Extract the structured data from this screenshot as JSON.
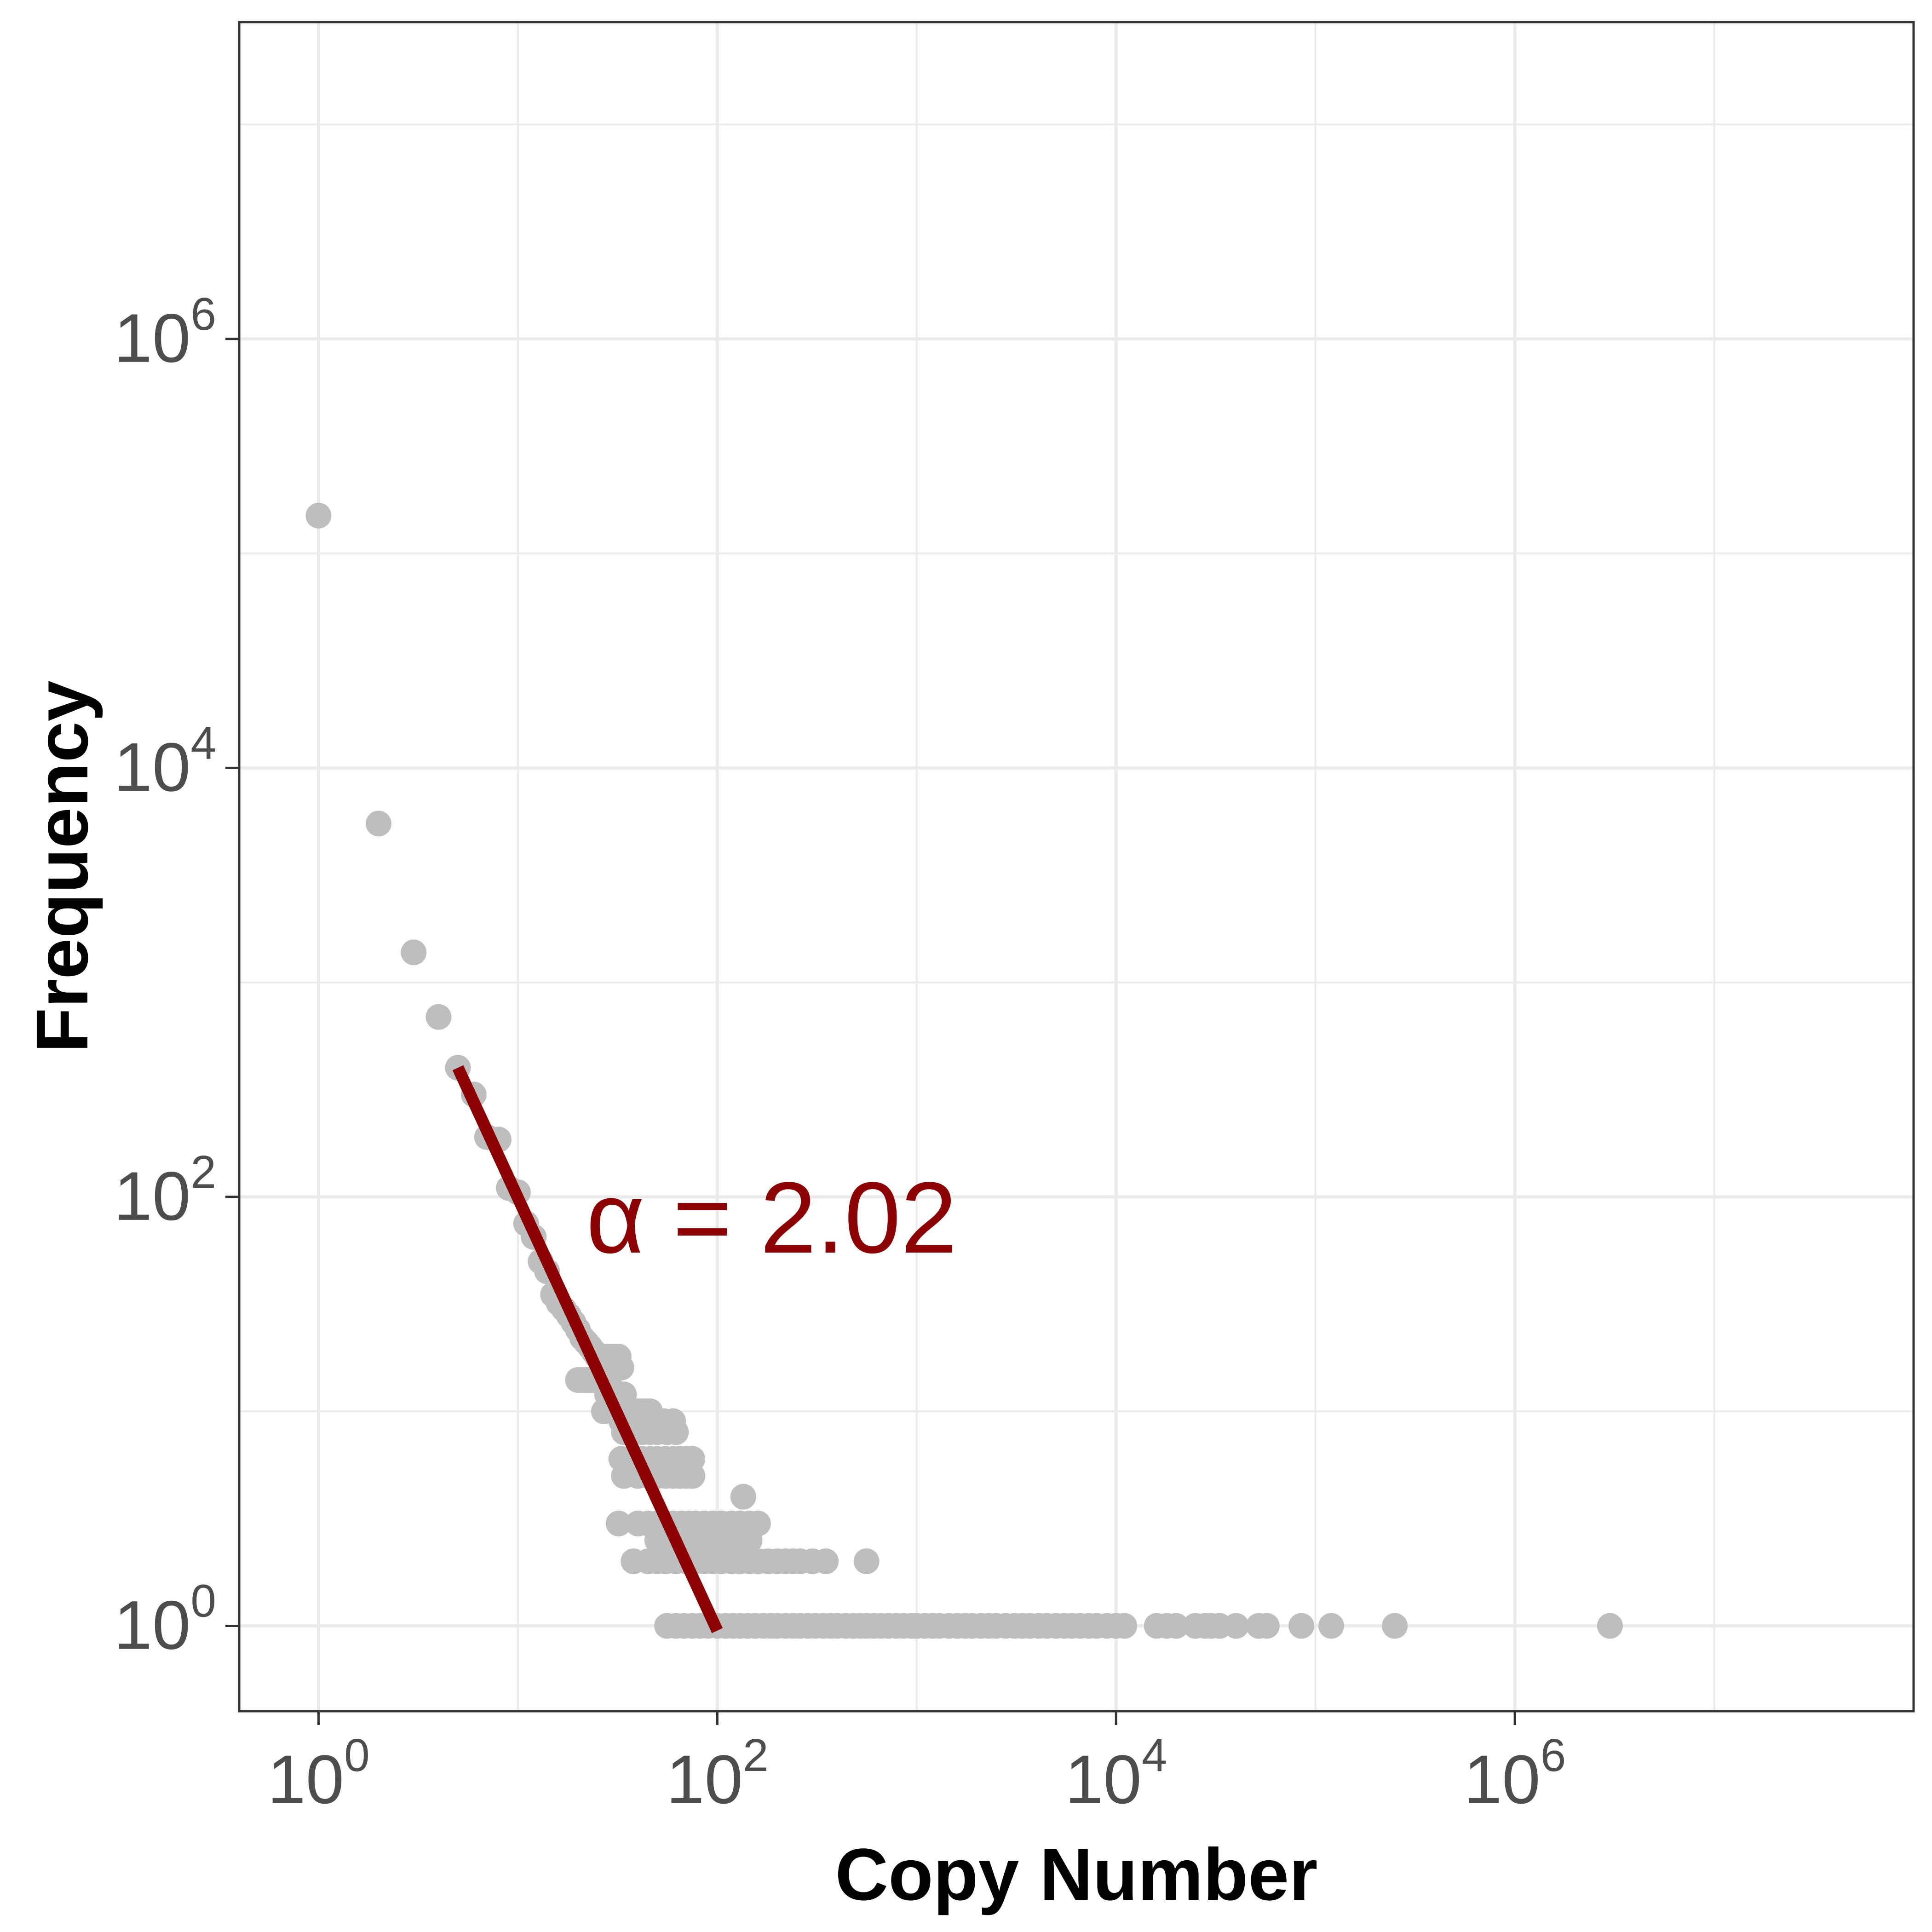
{
  "chart_data": {
    "type": "scatter",
    "xlabel": "Copy Number",
    "ylabel": "Frequency",
    "x_scale": "log10",
    "y_scale": "log10",
    "xlim": [
      0.4,
      100000000
    ],
    "ylim": [
      0.4,
      30000000
    ],
    "x_ticks": [
      {
        "value": 1,
        "base": "10",
        "exp": "0"
      },
      {
        "value": 100,
        "base": "10",
        "exp": "2"
      },
      {
        "value": 10000,
        "base": "10",
        "exp": "4"
      },
      {
        "value": 1000000,
        "base": "10",
        "exp": "6"
      }
    ],
    "y_ticks": [
      {
        "value": 1,
        "base": "10",
        "exp": "0"
      },
      {
        "value": 100,
        "base": "10",
        "exp": "2"
      },
      {
        "value": 10000,
        "base": "10",
        "exp": "4"
      },
      {
        "value": 1000000,
        "base": "10",
        "exp": "6"
      }
    ],
    "grid": true,
    "point_color": "#bebebe",
    "points": [
      [
        1,
        150000
      ],
      [
        2,
        5500
      ],
      [
        3,
        1380
      ],
      [
        4,
        690
      ],
      [
        5,
        400
      ],
      [
        6,
        300
      ],
      [
        7,
        190
      ],
      [
        8,
        185
      ],
      [
        9,
        110
      ],
      [
        10,
        105
      ],
      [
        11,
        75
      ],
      [
        12,
        65
      ],
      [
        13,
        50
      ],
      [
        14,
        45
      ],
      [
        15,
        35
      ],
      [
        16,
        32
      ],
      [
        17,
        30
      ],
      [
        18,
        28
      ],
      [
        19,
        26
      ],
      [
        20,
        24
      ],
      [
        21,
        22
      ],
      [
        22,
        21
      ],
      [
        23,
        20
      ],
      [
        24,
        19
      ],
      [
        25,
        18
      ],
      [
        26,
        17
      ],
      [
        27,
        15
      ],
      [
        28,
        14
      ],
      [
        29,
        13
      ],
      [
        20,
        14
      ],
      [
        21,
        14
      ],
      [
        22,
        14
      ],
      [
        23,
        14
      ],
      [
        24,
        14
      ],
      [
        25,
        14
      ],
      [
        26,
        14
      ],
      [
        27,
        18
      ],
      [
        28,
        18
      ],
      [
        29,
        18
      ],
      [
        30,
        18
      ],
      [
        31,
        18
      ],
      [
        32,
        18
      ],
      [
        33,
        16
      ],
      [
        28,
        12
      ],
      [
        29,
        12
      ],
      [
        30,
        12
      ],
      [
        31,
        12
      ],
      [
        32,
        12
      ],
      [
        33,
        12
      ],
      [
        34,
        12
      ],
      [
        27,
        10
      ],
      [
        30,
        10
      ],
      [
        33,
        10
      ],
      [
        36,
        10
      ],
      [
        38,
        10
      ],
      [
        40,
        10
      ],
      [
        42,
        10
      ],
      [
        44,
        10
      ],
      [
        46,
        10
      ],
      [
        33,
        9
      ],
      [
        36,
        9
      ],
      [
        40,
        9
      ],
      [
        44,
        9
      ],
      [
        48,
        9
      ],
      [
        54,
        9
      ],
      [
        60,
        9
      ],
      [
        34,
        8
      ],
      [
        38,
        8
      ],
      [
        42,
        8
      ],
      [
        46,
        8
      ],
      [
        50,
        8
      ],
      [
        56,
        8
      ],
      [
        62,
        8
      ],
      [
        33,
        6
      ],
      [
        38,
        6
      ],
      [
        42,
        6
      ],
      [
        46,
        6
      ],
      [
        50,
        6
      ],
      [
        55,
        6
      ],
      [
        60,
        6
      ],
      [
        65,
        6
      ],
      [
        70,
        6
      ],
      [
        75,
        6
      ],
      [
        34,
        5
      ],
      [
        40,
        5
      ],
      [
        45,
        5
      ],
      [
        50,
        5
      ],
      [
        55,
        5
      ],
      [
        60,
        5
      ],
      [
        65,
        5
      ],
      [
        70,
        5
      ],
      [
        75,
        5
      ],
      [
        32,
        3
      ],
      [
        40,
        3
      ],
      [
        45,
        3
      ],
      [
        50,
        3
      ],
      [
        55,
        3
      ],
      [
        60,
        3
      ],
      [
        66,
        3
      ],
      [
        72,
        3
      ],
      [
        78,
        3
      ],
      [
        86,
        3
      ],
      [
        95,
        3
      ],
      [
        105,
        3
      ],
      [
        118,
        3
      ],
      [
        130,
        3
      ],
      [
        145,
        3
      ],
      [
        160,
        3
      ],
      [
        135,
        4
      ],
      [
        50,
        2.5
      ],
      [
        55,
        2.5
      ],
      [
        62,
        2.5
      ],
      [
        70,
        2.5
      ],
      [
        78,
        2.5
      ],
      [
        86,
        2.5
      ],
      [
        95,
        2.5
      ],
      [
        105,
        2.5
      ],
      [
        118,
        2.5
      ],
      [
        130,
        2.5
      ],
      [
        145,
        2.5
      ],
      [
        38,
        2
      ],
      [
        45,
        2
      ],
      [
        50,
        2
      ],
      [
        55,
        2
      ],
      [
        62,
        2
      ],
      [
        70,
        2
      ],
      [
        78,
        2
      ],
      [
        86,
        2
      ],
      [
        95,
        2
      ],
      [
        105,
        2
      ],
      [
        118,
        2
      ],
      [
        130,
        2
      ],
      [
        145,
        2
      ],
      [
        160,
        2
      ],
      [
        180,
        2
      ],
      [
        200,
        2
      ],
      [
        220,
        2
      ],
      [
        240,
        2
      ],
      [
        260,
        2
      ],
      [
        300,
        2
      ],
      [
        350,
        2
      ],
      [
        560,
        2
      ],
      [
        56,
        1
      ],
      [
        62,
        1
      ],
      [
        68,
        1
      ],
      [
        75,
        1
      ],
      [
        82,
        1
      ],
      [
        90,
        1
      ],
      [
        100,
        1
      ],
      [
        110,
        1
      ],
      [
        120,
        1
      ],
      [
        130,
        1
      ],
      [
        142,
        1
      ],
      [
        155,
        1
      ],
      [
        170,
        1
      ],
      [
        185,
        1
      ],
      [
        200,
        1
      ],
      [
        220,
        1
      ],
      [
        240,
        1
      ],
      [
        260,
        1
      ],
      [
        285,
        1
      ],
      [
        310,
        1
      ],
      [
        340,
        1
      ],
      [
        370,
        1
      ],
      [
        400,
        1
      ],
      [
        440,
        1
      ],
      [
        480,
        1
      ],
      [
        520,
        1
      ],
      [
        560,
        1
      ],
      [
        610,
        1
      ],
      [
        660,
        1
      ],
      [
        720,
        1
      ],
      [
        790,
        1
      ],
      [
        860,
        1
      ],
      [
        940,
        1
      ],
      [
        1000,
        1
      ],
      [
        1100,
        1
      ],
      [
        1200,
        1
      ],
      [
        1300,
        1
      ],
      [
        1450,
        1
      ],
      [
        1600,
        1
      ],
      [
        1750,
        1
      ],
      [
        1900,
        1
      ],
      [
        2100,
        1
      ],
      [
        2300,
        1
      ],
      [
        2500,
        1
      ],
      [
        2800,
        1
      ],
      [
        3100,
        1
      ],
      [
        3400,
        1
      ],
      [
        3700,
        1
      ],
      [
        4100,
        1
      ],
      [
        4500,
        1
      ],
      [
        5000,
        1
      ],
      [
        5500,
        1
      ],
      [
        6000,
        1
      ],
      [
        6600,
        1
      ],
      [
        7300,
        1
      ],
      [
        8000,
        1
      ],
      [
        9000,
        1
      ],
      [
        10000,
        1
      ],
      [
        11000,
        1
      ],
      [
        16000,
        1
      ],
      [
        18000,
        1
      ],
      [
        20000,
        1
      ],
      [
        25000,
        1
      ],
      [
        28000,
        1
      ],
      [
        30000,
        1
      ],
      [
        33000,
        1
      ],
      [
        40000,
        1
      ],
      [
        52000,
        1
      ],
      [
        57000,
        1
      ],
      [
        85000,
        1
      ],
      [
        120000,
        1
      ],
      [
        250000,
        1
      ],
      [
        3000000,
        1
      ]
    ],
    "fit_line": {
      "color": "#8b0000",
      "x": [
        5,
        100
      ],
      "y": [
        400,
        0.95
      ]
    },
    "annotation": {
      "text": "α = 2.02",
      "color": "#8b0000",
      "x": 22,
      "y": 55
    }
  }
}
